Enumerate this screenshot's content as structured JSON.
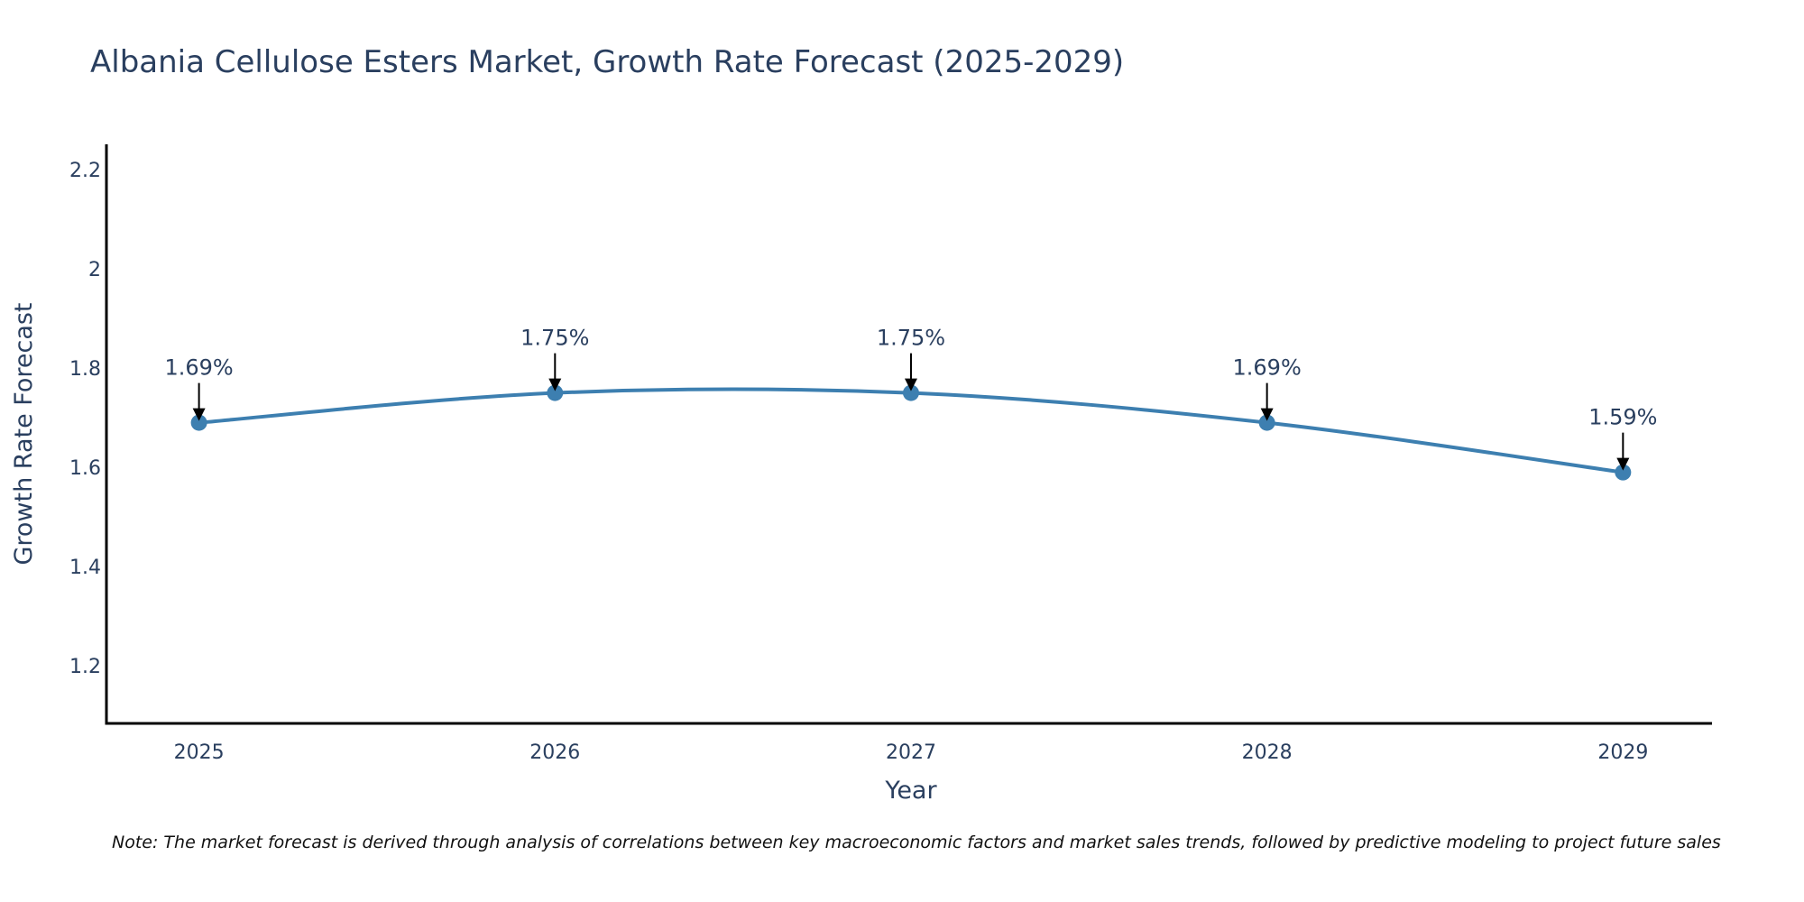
{
  "chart_data": {
    "type": "line",
    "title": "Albania Cellulose Esters Market, Growth Rate Forecast (2025-2029)",
    "xlabel": "Year",
    "ylabel": "Growth Rate Forecast",
    "x": [
      2025,
      2026,
      2027,
      2028,
      2029
    ],
    "series": [
      {
        "name": "Growth Rate Forecast",
        "values": [
          1.69,
          1.75,
          1.75,
          1.69,
          1.59
        ],
        "labels": [
          "1.69%",
          "1.75%",
          "1.75%",
          "1.69%",
          "1.59%"
        ],
        "color": "#3d7fb0",
        "line_shape": "spline",
        "markers": true
      }
    ],
    "xlim": [
      2024.74,
      2029.25
    ],
    "ylim": [
      1.084,
      2.251
    ],
    "x_ticks": [
      2025,
      2026,
      2027,
      2028,
      2029
    ],
    "x_tick_labels": [
      "2025",
      "2026",
      "2027",
      "2028",
      "2029"
    ],
    "y_ticks": [
      1.2,
      1.4,
      1.6,
      1.8,
      2.0,
      2.2
    ],
    "y_tick_labels": [
      "1.2",
      "1.4",
      "1.6",
      "1.8",
      "2",
      "2.2"
    ],
    "grid": false,
    "legend": "none",
    "annotations_style": "arrow-down-to-point",
    "note": "Note: The market forecast is derived through analysis of correlations between key macroeconomic factors and market sales trends, followed by predictive modeling to project future sales"
  }
}
